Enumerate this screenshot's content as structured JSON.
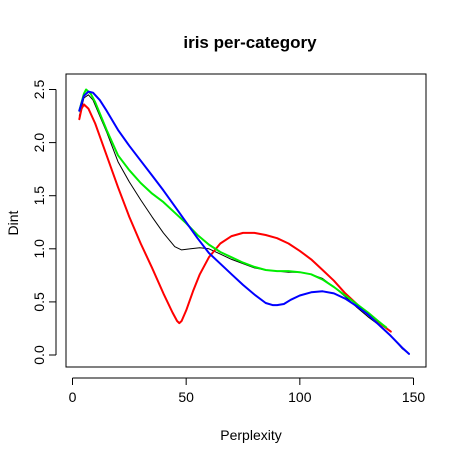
{
  "chart_data": {
    "type": "line",
    "title": "iris per-category",
    "xlabel": "Perplexity",
    "ylabel": "Dint",
    "xlim": [
      0,
      150
    ],
    "ylim": [
      0,
      2.5
    ],
    "x_ticks": [
      0,
      50,
      100,
      150
    ],
    "y_ticks": [
      0.0,
      0.5,
      1.0,
      1.5,
      2.0,
      2.5
    ],
    "x_tick_labels": [
      "0",
      "50",
      "100",
      "150"
    ],
    "y_tick_labels": [
      "0.0",
      "0.5",
      "1.0",
      "1.5",
      "2.0",
      "2.5"
    ],
    "grid": false,
    "legend": "none",
    "series": [
      {
        "color": "#000000",
        "width": 1,
        "x": [
          3,
          5,
          7,
          9,
          12,
          15,
          20,
          25,
          30,
          35,
          40,
          45,
          48,
          52,
          56,
          60,
          65,
          70,
          75,
          80,
          85,
          90,
          95,
          100,
          105,
          110,
          115,
          120,
          125,
          130,
          135,
          140,
          145,
          148
        ],
        "y": [
          2.25,
          2.42,
          2.45,
          2.4,
          2.25,
          2.1,
          1.82,
          1.63,
          1.46,
          1.3,
          1.15,
          1.02,
          0.99,
          1.0,
          1.01,
          1.0,
          0.95,
          0.9,
          0.86,
          0.82,
          0.8,
          0.79,
          0.78,
          0.78,
          0.76,
          0.72,
          0.64,
          0.55,
          0.45,
          0.36,
          0.28,
          0.18,
          0.06,
          0.01
        ]
      },
      {
        "color": "#ff0000",
        "width": 2,
        "x": [
          3,
          4,
          5,
          7,
          10,
          15,
          20,
          25,
          30,
          35,
          40,
          44,
          46,
          47,
          48,
          50,
          53,
          56,
          60,
          65,
          70,
          75,
          80,
          85,
          90,
          95,
          100,
          105,
          110,
          115,
          120,
          125,
          130,
          135,
          140
        ],
        "y": [
          2.22,
          2.32,
          2.36,
          2.32,
          2.18,
          1.88,
          1.58,
          1.3,
          1.05,
          0.82,
          0.58,
          0.4,
          0.32,
          0.3,
          0.32,
          0.42,
          0.6,
          0.76,
          0.92,
          1.05,
          1.12,
          1.15,
          1.15,
          1.13,
          1.1,
          1.05,
          0.98,
          0.9,
          0.8,
          0.7,
          0.58,
          0.48,
          0.38,
          0.3,
          0.22
        ]
      },
      {
        "color": "#00ee00",
        "width": 2,
        "x": [
          3,
          5,
          6,
          8,
          10,
          15,
          20,
          25,
          30,
          35,
          40,
          45,
          50,
          55,
          60,
          65,
          70,
          75,
          80,
          85,
          90,
          95,
          100,
          105,
          110,
          115,
          120,
          125,
          130,
          135,
          138
        ],
        "y": [
          2.3,
          2.46,
          2.5,
          2.46,
          2.38,
          2.12,
          1.88,
          1.74,
          1.62,
          1.52,
          1.44,
          1.34,
          1.24,
          1.13,
          1.04,
          0.97,
          0.92,
          0.87,
          0.83,
          0.8,
          0.79,
          0.79,
          0.78,
          0.76,
          0.71,
          0.64,
          0.56,
          0.48,
          0.4,
          0.31,
          0.26
        ]
      },
      {
        "color": "#0000ff",
        "width": 2,
        "x": [
          3,
          5,
          7,
          9,
          12,
          15,
          20,
          25,
          30,
          35,
          40,
          45,
          50,
          55,
          60,
          65,
          70,
          75,
          80,
          85,
          88,
          90,
          93,
          96,
          100,
          105,
          110,
          115,
          120,
          125,
          130,
          135,
          140,
          145,
          148
        ],
        "y": [
          2.3,
          2.44,
          2.48,
          2.47,
          2.4,
          2.3,
          2.12,
          1.97,
          1.83,
          1.69,
          1.55,
          1.4,
          1.25,
          1.1,
          0.96,
          0.86,
          0.76,
          0.66,
          0.57,
          0.49,
          0.47,
          0.47,
          0.48,
          0.52,
          0.56,
          0.59,
          0.6,
          0.58,
          0.53,
          0.46,
          0.38,
          0.28,
          0.18,
          0.07,
          0.01
        ]
      }
    ]
  }
}
